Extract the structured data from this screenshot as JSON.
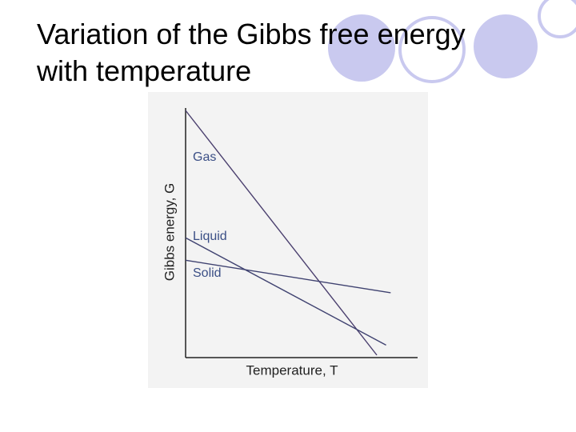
{
  "chart_data": {
    "type": "line",
    "title": "Variation of the Gibbs free energy with temperature",
    "x_label": "Temperature, T",
    "y_label": "Gibbs energy, G",
    "xlim": [
      0,
      10
    ],
    "ylim": [
      0,
      10
    ],
    "series": [
      {
        "name": "Gas",
        "color": "#4a3f6e",
        "x": [
          0,
          8.3
        ],
        "values": [
          9.9,
          0.1
        ]
      },
      {
        "name": "Liquid",
        "color": "#3f4270",
        "x": [
          0,
          8.7
        ],
        "values": [
          4.8,
          0.5
        ]
      },
      {
        "name": "Solid",
        "color": "#3f4270",
        "x": [
          0,
          8.9
        ],
        "values": [
          3.9,
          2.6
        ]
      }
    ]
  }
}
